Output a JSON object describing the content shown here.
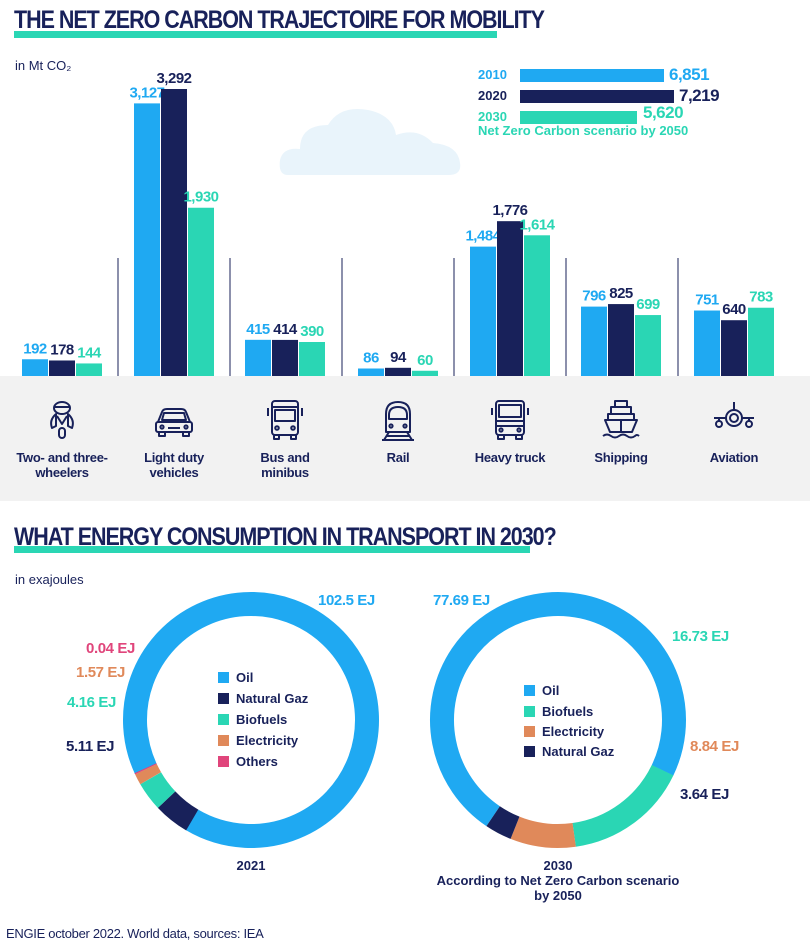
{
  "header": {
    "title": "THE NET ZERO CARBON TRAJECTOIRE FOR MOBILITY",
    "unit": "in Mt CO₂"
  },
  "colors": {
    "y2010": "#1fa9f2",
    "y2020": "#18215a",
    "y2030": "#2ad6b4",
    "electricity": "#e0895a",
    "others": "#e0457b",
    "band": "#f2f2f2",
    "cloud": "#e9f4fb"
  },
  "icons": [
    "scooter-icon",
    "car-icon",
    "bus-icon",
    "train-icon",
    "truck-icon",
    "ship-icon",
    "airplane-icon"
  ],
  "chart_data": [
    {
      "type": "bar",
      "title": "THE NET ZERO CARBON TRAJECTOIRE FOR MOBILITY",
      "ylabel": "in Mt CO₂",
      "categories": [
        "Two- and three-\nwheelers",
        "Light duty\nvehicles",
        "Bus and\nminibus",
        "Rail",
        "Heavy truck",
        "Shipping",
        "Aviation"
      ],
      "series": [
        {
          "name": "2010",
          "values": [
            192,
            3127,
            415,
            86,
            1484,
            796,
            751
          ],
          "labels": [
            "192",
            "3,127",
            "415",
            "86",
            "1,484",
            "796",
            "751"
          ]
        },
        {
          "name": "2020",
          "values": [
            178,
            3292,
            414,
            94,
            1776,
            825,
            640
          ],
          "labels": [
            "178",
            "3,292",
            "414",
            "94",
            "1,776",
            "825",
            "640"
          ]
        },
        {
          "name": "2030",
          "values": [
            144,
            1930,
            390,
            60,
            1614,
            699,
            783
          ],
          "labels": [
            "144",
            "1,930",
            "390",
            "60",
            "1,614",
            "699",
            "783"
          ]
        }
      ],
      "legend": {
        "items": [
          {
            "year": "2010",
            "total": 6851,
            "total_label": "6,851"
          },
          {
            "year": "2020",
            "total": 7219,
            "total_label": "7,219"
          },
          {
            "year": "2030",
            "total": 5620,
            "total_label": "5,620"
          }
        ],
        "note": "Net Zero Carbon scenario by 2050",
        "placement": "top-right"
      },
      "ylim": [
        0,
        3292
      ]
    },
    {
      "type": "pie",
      "title": "WHAT ENERGY CONSUMPTION IN TRANSPORT IN 2030?",
      "unit": "in exajoules",
      "caption": "2021",
      "slices": [
        {
          "name": "Oil",
          "value": 102.5,
          "label": "102.5 EJ"
        },
        {
          "name": "Natural Gaz",
          "value": 5.11,
          "label": "5.11 EJ"
        },
        {
          "name": "Biofuels",
          "value": 4.16,
          "label": "4.16 EJ"
        },
        {
          "name": "Electricity",
          "value": 1.57,
          "label": "1.57 EJ"
        },
        {
          "name": "Others",
          "value": 0.04,
          "label": "0.04 EJ"
        }
      ]
    },
    {
      "type": "pie",
      "caption": "2030\nAccording to Net Zero Carbon scenario\nby 2050",
      "slices": [
        {
          "name": "Oil",
          "value": 77.69,
          "label": "77.69 EJ"
        },
        {
          "name": "Biofuels",
          "value": 16.73,
          "label": "16.73 EJ"
        },
        {
          "name": "Electricity",
          "value": 8.84,
          "label": "8.84 EJ"
        },
        {
          "name": "Natural Gaz",
          "value": 3.64,
          "label": "3.64 EJ"
        }
      ]
    }
  ],
  "footer": "ENGIE october 2022. World data, sources: IEA"
}
